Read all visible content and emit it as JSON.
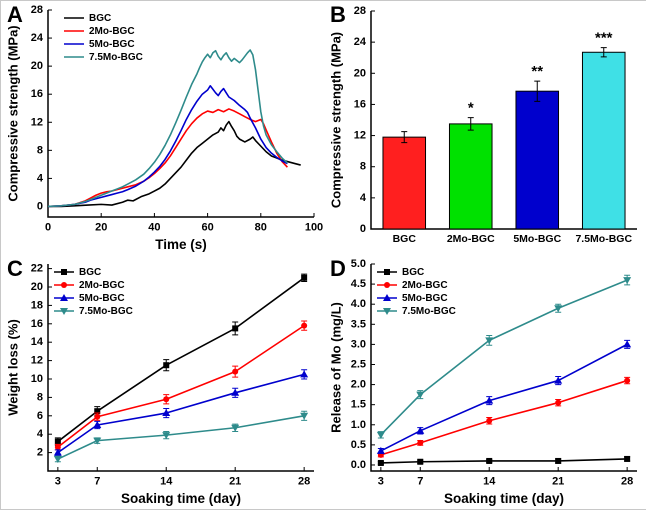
{
  "figure": {
    "background": "#ffffff",
    "panels": [
      {
        "label": "A"
      },
      {
        "label": "B"
      },
      {
        "label": "C"
      },
      {
        "label": "D"
      }
    ]
  },
  "palette": {
    "BGC": "#000000",
    "2Mo-BGC": "#ff0000",
    "5Mo-BGC": "#0000cd",
    "7.5Mo-BGC": "#2e8b8b"
  },
  "chart_data": [
    {
      "id": "A",
      "type": "line",
      "title": "",
      "xlabel": "Time (s)",
      "ylabel": "Compressive strength (MPa)",
      "xlim": [
        0,
        100
      ],
      "ylim": [
        -1.5,
        28
      ],
      "xticks": [
        "0",
        "20",
        "40",
        "60",
        "80",
        "100"
      ],
      "yticks": [
        "0",
        "4",
        "8",
        "12",
        "16",
        "20",
        "24",
        "28"
      ],
      "legend_pos": "top-left",
      "legend_dx": 16,
      "legend_dy": 2,
      "series": [
        {
          "name": "BGC",
          "color": "#000000",
          "points": [
            [
              0,
              0
            ],
            [
              5,
              0
            ],
            [
              10,
              0.1
            ],
            [
              15,
              0.2
            ],
            [
              20,
              0.3
            ],
            [
              24,
              0.2
            ],
            [
              28,
              0.6
            ],
            [
              30,
              0.9
            ],
            [
              32,
              0.8
            ],
            [
              35,
              1.4
            ],
            [
              38,
              1.8
            ],
            [
              40,
              2.2
            ],
            [
              42,
              2.6
            ],
            [
              44,
              3.2
            ],
            [
              46,
              4.0
            ],
            [
              48,
              4.8
            ],
            [
              50,
              5.6
            ],
            [
              52,
              6.6
            ],
            [
              54,
              7.6
            ],
            [
              56,
              8.4
            ],
            [
              58,
              9.0
            ],
            [
              60,
              9.6
            ],
            [
              62,
              10.2
            ],
            [
              64,
              10.6
            ],
            [
              65,
              11.2
            ],
            [
              66,
              10.8
            ],
            [
              67,
              11.6
            ],
            [
              68,
              12.1
            ],
            [
              69,
              11.4
            ],
            [
              70,
              10.8
            ],
            [
              71,
              10.0
            ],
            [
              72,
              9.6
            ],
            [
              74,
              9.2
            ],
            [
              76,
              9.6
            ],
            [
              77,
              9.9
            ],
            [
              78,
              9.4
            ],
            [
              80,
              8.6
            ],
            [
              82,
              7.8
            ],
            [
              84,
              7.2
            ],
            [
              86,
              6.9
            ],
            [
              88,
              6.6
            ],
            [
              90,
              6.4
            ],
            [
              93,
              6.1
            ],
            [
              95,
              5.9
            ]
          ]
        },
        {
          "name": "2Mo-BGC",
          "color": "#ff0000",
          "points": [
            [
              0,
              0
            ],
            [
              5,
              0.1
            ],
            [
              10,
              0.3
            ],
            [
              14,
              0.8
            ],
            [
              16,
              1.2
            ],
            [
              18,
              1.6
            ],
            [
              20,
              1.9
            ],
            [
              22,
              2.1
            ],
            [
              24,
              2.2
            ],
            [
              26,
              2.4
            ],
            [
              28,
              2.6
            ],
            [
              30,
              2.8
            ],
            [
              33,
              3.1
            ],
            [
              36,
              3.6
            ],
            [
              38,
              4.1
            ],
            [
              40,
              4.7
            ],
            [
              42,
              5.4
            ],
            [
              44,
              6.2
            ],
            [
              46,
              7.2
            ],
            [
              48,
              8.4
            ],
            [
              50,
              9.6
            ],
            [
              52,
              10.8
            ],
            [
              54,
              11.8
            ],
            [
              56,
              12.6
            ],
            [
              58,
              13.2
            ],
            [
              60,
              13.6
            ],
            [
              62,
              13.4
            ],
            [
              64,
              13.8
            ],
            [
              66,
              13.5
            ],
            [
              68,
              13.9
            ],
            [
              70,
              13.6
            ],
            [
              72,
              13.2
            ],
            [
              74,
              12.8
            ],
            [
              76,
              12.4
            ],
            [
              78,
              12.1
            ],
            [
              80,
              12.4
            ],
            [
              81,
              11.8
            ],
            [
              82,
              10.9
            ],
            [
              84,
              9.2
            ],
            [
              86,
              7.6
            ],
            [
              88,
              6.4
            ],
            [
              90,
              5.6
            ]
          ]
        },
        {
          "name": "5Mo-BGC",
          "color": "#0000cd",
          "points": [
            [
              0,
              0
            ],
            [
              5,
              0.1
            ],
            [
              10,
              0.3
            ],
            [
              14,
              0.6
            ],
            [
              16,
              0.9
            ],
            [
              18,
              1.1
            ],
            [
              20,
              1.3
            ],
            [
              22,
              1.5
            ],
            [
              24,
              1.7
            ],
            [
              26,
              1.9
            ],
            [
              28,
              2.1
            ],
            [
              30,
              2.4
            ],
            [
              33,
              2.9
            ],
            [
              36,
              3.6
            ],
            [
              38,
              4.2
            ],
            [
              40,
              4.9
            ],
            [
              42,
              5.7
            ],
            [
              44,
              6.7
            ],
            [
              46,
              7.9
            ],
            [
              48,
              9.3
            ],
            [
              50,
              10.8
            ],
            [
              52,
              12.4
            ],
            [
              54,
              13.8
            ],
            [
              56,
              15.0
            ],
            [
              58,
              16.0
            ],
            [
              60,
              16.6
            ],
            [
              61,
              17.2
            ],
            [
              62,
              16.7
            ],
            [
              63,
              16.2
            ],
            [
              64,
              15.8
            ],
            [
              65,
              16.4
            ],
            [
              66,
              16.8
            ],
            [
              67,
              16.2
            ],
            [
              68,
              15.6
            ],
            [
              70,
              15.1
            ],
            [
              72,
              14.4
            ],
            [
              74,
              13.8
            ],
            [
              75,
              13.4
            ],
            [
              76,
              12.6
            ],
            [
              78,
              11.2
            ],
            [
              80,
              9.6
            ],
            [
              82,
              8.4
            ],
            [
              84,
              7.6
            ],
            [
              86,
              7.0
            ],
            [
              88,
              6.5
            ],
            [
              90,
              6.1
            ]
          ]
        },
        {
          "name": "7.5Mo-BGC",
          "color": "#2e8b8b",
          "points": [
            [
              0,
              0
            ],
            [
              5,
              0.1
            ],
            [
              10,
              0.3
            ],
            [
              14,
              0.7
            ],
            [
              16,
              1.0
            ],
            [
              18,
              1.3
            ],
            [
              20,
              1.6
            ],
            [
              22,
              1.9
            ],
            [
              24,
              2.2
            ],
            [
              26,
              2.5
            ],
            [
              28,
              2.8
            ],
            [
              30,
              3.2
            ],
            [
              33,
              3.8
            ],
            [
              36,
              4.6
            ],
            [
              38,
              5.4
            ],
            [
              40,
              6.3
            ],
            [
              42,
              7.4
            ],
            [
              44,
              8.7
            ],
            [
              46,
              10.2
            ],
            [
              48,
              11.9
            ],
            [
              50,
              13.7
            ],
            [
              52,
              15.6
            ],
            [
              54,
              17.4
            ],
            [
              56,
              18.9
            ],
            [
              57,
              19.8
            ],
            [
              58,
              20.6
            ],
            [
              59,
              21.2
            ],
            [
              60,
              21.7
            ],
            [
              61,
              21.2
            ],
            [
              62,
              21.9
            ],
            [
              63,
              22.2
            ],
            [
              64,
              21.4
            ],
            [
              65,
              20.9
            ],
            [
              66,
              21.5
            ],
            [
              67,
              21.9
            ],
            [
              68,
              21.2
            ],
            [
              69,
              20.7
            ],
            [
              70,
              21.1
            ],
            [
              71,
              20.8
            ],
            [
              72,
              20.5
            ],
            [
              73,
              20.9
            ],
            [
              74,
              21.4
            ],
            [
              75,
              21.9
            ],
            [
              76,
              22.3
            ],
            [
              77,
              21.6
            ],
            [
              78,
              19.5
            ],
            [
              79,
              16.5
            ],
            [
              80,
              13.5
            ],
            [
              81,
              11.5
            ],
            [
              82,
              10.2
            ],
            [
              84,
              8.8
            ],
            [
              86,
              7.8
            ],
            [
              88,
              6.9
            ],
            [
              90,
              6.2
            ]
          ]
        }
      ]
    },
    {
      "id": "B",
      "type": "bar",
      "title": "",
      "xlabel": "",
      "ylabel": "Compressive strength (MPa)",
      "categories": [
        "BGC",
        "2Mo-BGC",
        "5Mo-BGC",
        "7.5Mo-BGC"
      ],
      "values": [
        11.8,
        13.5,
        17.7,
        22.7
      ],
      "errors": [
        0.7,
        0.8,
        1.3,
        0.6
      ],
      "bar_colors": [
        "#ff1f1f",
        "#00e100",
        "#0000cd",
        "#3fe0e6"
      ],
      "annotations": [
        "",
        "*",
        "**",
        "***"
      ],
      "ylim": [
        0,
        28
      ],
      "yticks": [
        "0",
        "4",
        "8",
        "12",
        "16",
        "20",
        "24",
        "28"
      ]
    },
    {
      "id": "C",
      "type": "line",
      "title": "",
      "xlabel": "Soaking time (day)",
      "ylabel": "Weight loss (%)",
      "x": [
        3,
        7,
        14,
        21,
        28
      ],
      "xlim": [
        2,
        29
      ],
      "ylim": [
        0,
        22.5
      ],
      "xticks": [
        "3",
        "7",
        "14",
        "21",
        "28"
      ],
      "yticks": [
        "2",
        "4",
        "6",
        "8",
        "10",
        "12",
        "14",
        "16",
        "18",
        "20",
        "22"
      ],
      "legend_pos": "top-left",
      "legend_dx": 6,
      "legend_dy": 2,
      "series": [
        {
          "name": "BGC",
          "color": "#000000",
          "marker": "square",
          "values": [
            3.2,
            6.5,
            11.5,
            15.5,
            21.0
          ],
          "errors": [
            0.4,
            0.5,
            0.6,
            0.7,
            0.4
          ]
        },
        {
          "name": "2Mo-BGC",
          "color": "#ff0000",
          "marker": "circle",
          "values": [
            2.6,
            5.9,
            7.8,
            10.8,
            15.8
          ],
          "errors": [
            0.3,
            0.4,
            0.5,
            0.6,
            0.5
          ]
        },
        {
          "name": "5Mo-BGC",
          "color": "#0000cd",
          "marker": "triangle-up",
          "values": [
            2.0,
            5.0,
            6.3,
            8.5,
            10.5
          ],
          "errors": [
            0.3,
            0.4,
            0.5,
            0.5,
            0.5
          ]
        },
        {
          "name": "7.5Mo-BGC",
          "color": "#2e8b8b",
          "marker": "triangle-down",
          "values": [
            1.3,
            3.3,
            3.9,
            4.7,
            6.0
          ],
          "errors": [
            0.3,
            0.3,
            0.4,
            0.4,
            0.5
          ]
        }
      ]
    },
    {
      "id": "D",
      "type": "line",
      "title": "",
      "xlabel": "Soaking time (day)",
      "ylabel": "Release of Mo (mg/L)",
      "x": [
        3,
        7,
        14,
        21,
        28
      ],
      "xlim": [
        2,
        29
      ],
      "ylim": [
        -0.15,
        5.0
      ],
      "xticks": [
        "3",
        "7",
        "14",
        "21",
        "28"
      ],
      "yticks": [
        "0.0",
        "0.5",
        "1.0",
        "1.5",
        "2.0",
        "2.5",
        "3.0",
        "3.5",
        "4.0",
        "4.5",
        "5.0"
      ],
      "legend_pos": "top-left",
      "legend_dx": 6,
      "legend_dy": 2,
      "series": [
        {
          "name": "BGC",
          "color": "#000000",
          "marker": "square",
          "values": [
            0.05,
            0.08,
            0.1,
            0.1,
            0.15
          ],
          "errors": [
            0.03,
            0.04,
            0.04,
            0.05,
            0.05
          ]
        },
        {
          "name": "2Mo-BGC",
          "color": "#ff0000",
          "marker": "circle",
          "values": [
            0.25,
            0.55,
            1.1,
            1.55,
            2.1
          ],
          "errors": [
            0.05,
            0.06,
            0.08,
            0.08,
            0.08
          ]
        },
        {
          "name": "5Mo-BGC",
          "color": "#0000cd",
          "marker": "triangle-up",
          "values": [
            0.35,
            0.85,
            1.6,
            2.1,
            3.0
          ],
          "errors": [
            0.06,
            0.08,
            0.1,
            0.1,
            0.1
          ]
        },
        {
          "name": "7.5Mo-BGC",
          "color": "#2e8b8b",
          "marker": "triangle-down",
          "values": [
            0.75,
            1.75,
            3.1,
            3.9,
            4.6
          ],
          "errors": [
            0.08,
            0.1,
            0.12,
            0.1,
            0.12
          ]
        }
      ]
    }
  ]
}
